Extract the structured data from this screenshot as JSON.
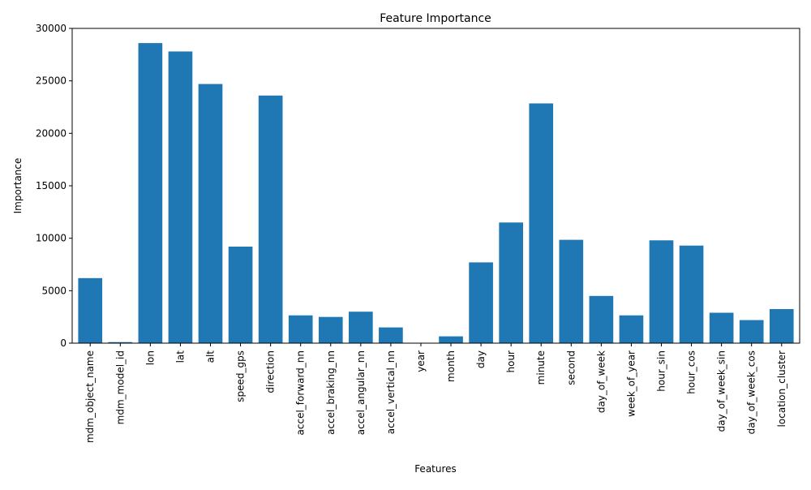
{
  "chart_data": {
    "type": "bar",
    "title": "Feature Importance",
    "xlabel": "Features",
    "ylabel": "Importance",
    "ylim": [
      0,
      30000
    ],
    "yticks": [
      0,
      5000,
      10000,
      15000,
      20000,
      25000,
      30000
    ],
    "bar_color": "#1f77b4",
    "grid": false,
    "categories": [
      "mdm_object_name",
      "mdm_model_id",
      "lon",
      "lat",
      "alt",
      "speed_gps",
      "direction",
      "accel_forward_nn",
      "accel_braking_nn",
      "accel_angular_nn",
      "accel_vertical_nn",
      "year",
      "month",
      "day",
      "hour",
      "minute",
      "second",
      "day_of_week",
      "week_of_year",
      "hour_sin",
      "hour_cos",
      "day_of_week_sin",
      "day_of_week_cos",
      "location_cluster"
    ],
    "values": [
      6200,
      100,
      28600,
      27800,
      24700,
      9200,
      23600,
      2650,
      2500,
      3000,
      1500,
      0,
      650,
      7700,
      11500,
      22850,
      9850,
      4500,
      2650,
      9800,
      9300,
      2900,
      2200,
      3250
    ]
  }
}
